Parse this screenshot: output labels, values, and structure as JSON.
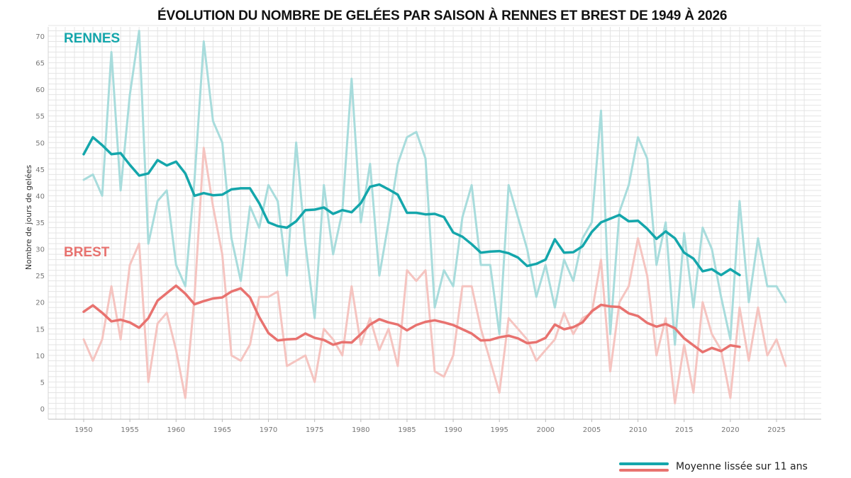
{
  "chart_data": {
    "type": "line",
    "title": "ÉVOLUTION DU NOMBRE DE GELÉES PAR SAISON À RENNES ET BREST DE 1949 À 2026",
    "xlabel": "",
    "ylabel": "Nombre de jours de gelées",
    "xlim": [
      1947,
      2028
    ],
    "ylim": [
      -2,
      72
    ],
    "grid": true,
    "x_ticks": [
      "1950",
      "1955",
      "1960",
      "1965",
      "1970",
      "1975",
      "1980",
      "1985",
      "1990",
      "1995",
      "2000",
      "2005",
      "2010",
      "2015",
      "2020",
      "2025"
    ],
    "y_ticks": [
      "0",
      "5",
      "10",
      "15",
      "20",
      "25",
      "30",
      "35",
      "40",
      "45",
      "50",
      "55",
      "60",
      "65",
      "70"
    ],
    "legend_position": "bottom-right",
    "legend_label": "Moyenne lissée sur 11 ans",
    "series": [
      {
        "name": "RENNES",
        "color": "#a8dcdc",
        "x_start": 1950,
        "values": [
          43,
          44,
          40,
          67,
          41,
          59,
          71,
          31,
          39,
          41,
          27,
          23,
          43,
          69,
          54,
          50,
          32,
          24,
          38,
          34,
          42,
          39,
          25,
          50,
          31,
          17,
          42,
          29,
          37,
          62,
          35,
          46,
          25,
          35,
          46,
          51,
          52,
          47,
          19,
          26,
          23,
          36,
          42,
          27,
          27,
          14,
          42,
          36,
          30,
          21,
          27,
          19,
          28,
          24,
          32,
          35,
          56,
          14,
          37,
          42,
          51,
          47,
          27,
          35,
          12,
          33,
          19,
          34,
          30,
          21,
          13,
          39,
          20,
          32,
          23,
          23,
          20
        ]
      },
      {
        "name": "RENNES",
        "color": "#14a6ab",
        "x_start": 1950,
        "values": [
          47.8,
          51,
          49.5,
          47.8,
          48,
          45.8,
          43.8,
          44.2,
          46.7,
          45.7,
          46.4,
          44.2,
          40,
          40.5,
          40.1,
          40.2,
          41.2,
          41.4,
          41.4,
          38.6,
          35,
          34.3,
          34,
          35.2,
          37.3,
          37.4,
          37.8,
          36.6,
          37.3,
          36.9,
          38.6,
          41.7,
          42.1,
          41.2,
          40.2,
          36.8,
          36.8,
          36.5,
          36.6,
          36,
          33.1,
          32.3,
          30.9,
          29.3,
          29.5,
          29.6,
          29.2,
          28.4,
          26.8,
          27.2,
          28,
          31.8,
          29.3,
          29.4,
          30.5,
          33.2,
          35,
          35.7,
          36.4,
          35.2,
          35.3,
          33.8,
          31.9,
          33.3,
          32,
          29.3,
          28.2,
          25.8,
          26.2,
          25.1,
          26.2,
          25.1
        ]
      },
      {
        "name": "BREST",
        "color": "#f5c4c0",
        "x_start": 1950,
        "values": [
          13,
          9,
          13,
          23,
          13,
          27,
          31,
          5,
          16,
          18,
          11,
          2,
          21,
          49,
          38,
          29,
          10,
          9,
          12,
          21,
          21,
          22,
          8,
          9,
          10,
          5,
          15,
          13,
          10,
          23,
          12,
          17,
          11,
          15,
          8,
          26,
          24,
          26,
          7,
          6,
          10,
          23,
          23,
          15,
          9,
          3,
          17,
          15,
          13,
          9,
          11,
          13,
          18,
          14,
          17,
          18,
          28,
          7,
          20,
          23,
          32,
          25,
          10,
          17,
          1,
          12,
          3,
          20,
          14,
          11,
          2,
          19,
          9,
          19,
          10,
          13,
          8
        ]
      },
      {
        "name": "BREST",
        "color": "#e8726f",
        "x_start": 1950,
        "values": [
          18.2,
          19.4,
          18,
          16.4,
          16.7,
          16.2,
          15.2,
          17,
          20.3,
          21.7,
          23.1,
          21.6,
          19.6,
          20.2,
          20.7,
          20.9,
          22,
          22.6,
          20.9,
          17.2,
          14.2,
          12.8,
          13,
          13.1,
          14.1,
          13.3,
          12.9,
          12,
          12.5,
          12.4,
          14,
          15.8,
          16.8,
          16.2,
          15.8,
          14.7,
          15.7,
          16.3,
          16.6,
          16.2,
          15.7,
          14.9,
          14.1,
          12.8,
          12.9,
          13.4,
          13.7,
          13.2,
          12.3,
          12.5,
          13.3,
          15.8,
          14.9,
          15.3,
          16.2,
          18.3,
          19.5,
          19.2,
          19.1,
          17.9,
          17.4,
          16.1,
          15.4,
          15.9,
          15.1,
          13.2,
          11.9,
          10.6,
          11.4,
          10.8,
          11.9,
          11.6
        ]
      }
    ]
  },
  "labels": {
    "rennes": "RENNES",
    "brest": "BREST"
  },
  "colors": {
    "rennes_smooth": "#14a6ab",
    "rennes_raw": "#a8dcdc",
    "brest_smooth": "#e8726f",
    "brest_raw": "#f5c4c0",
    "grid": "#e4e4e4"
  }
}
